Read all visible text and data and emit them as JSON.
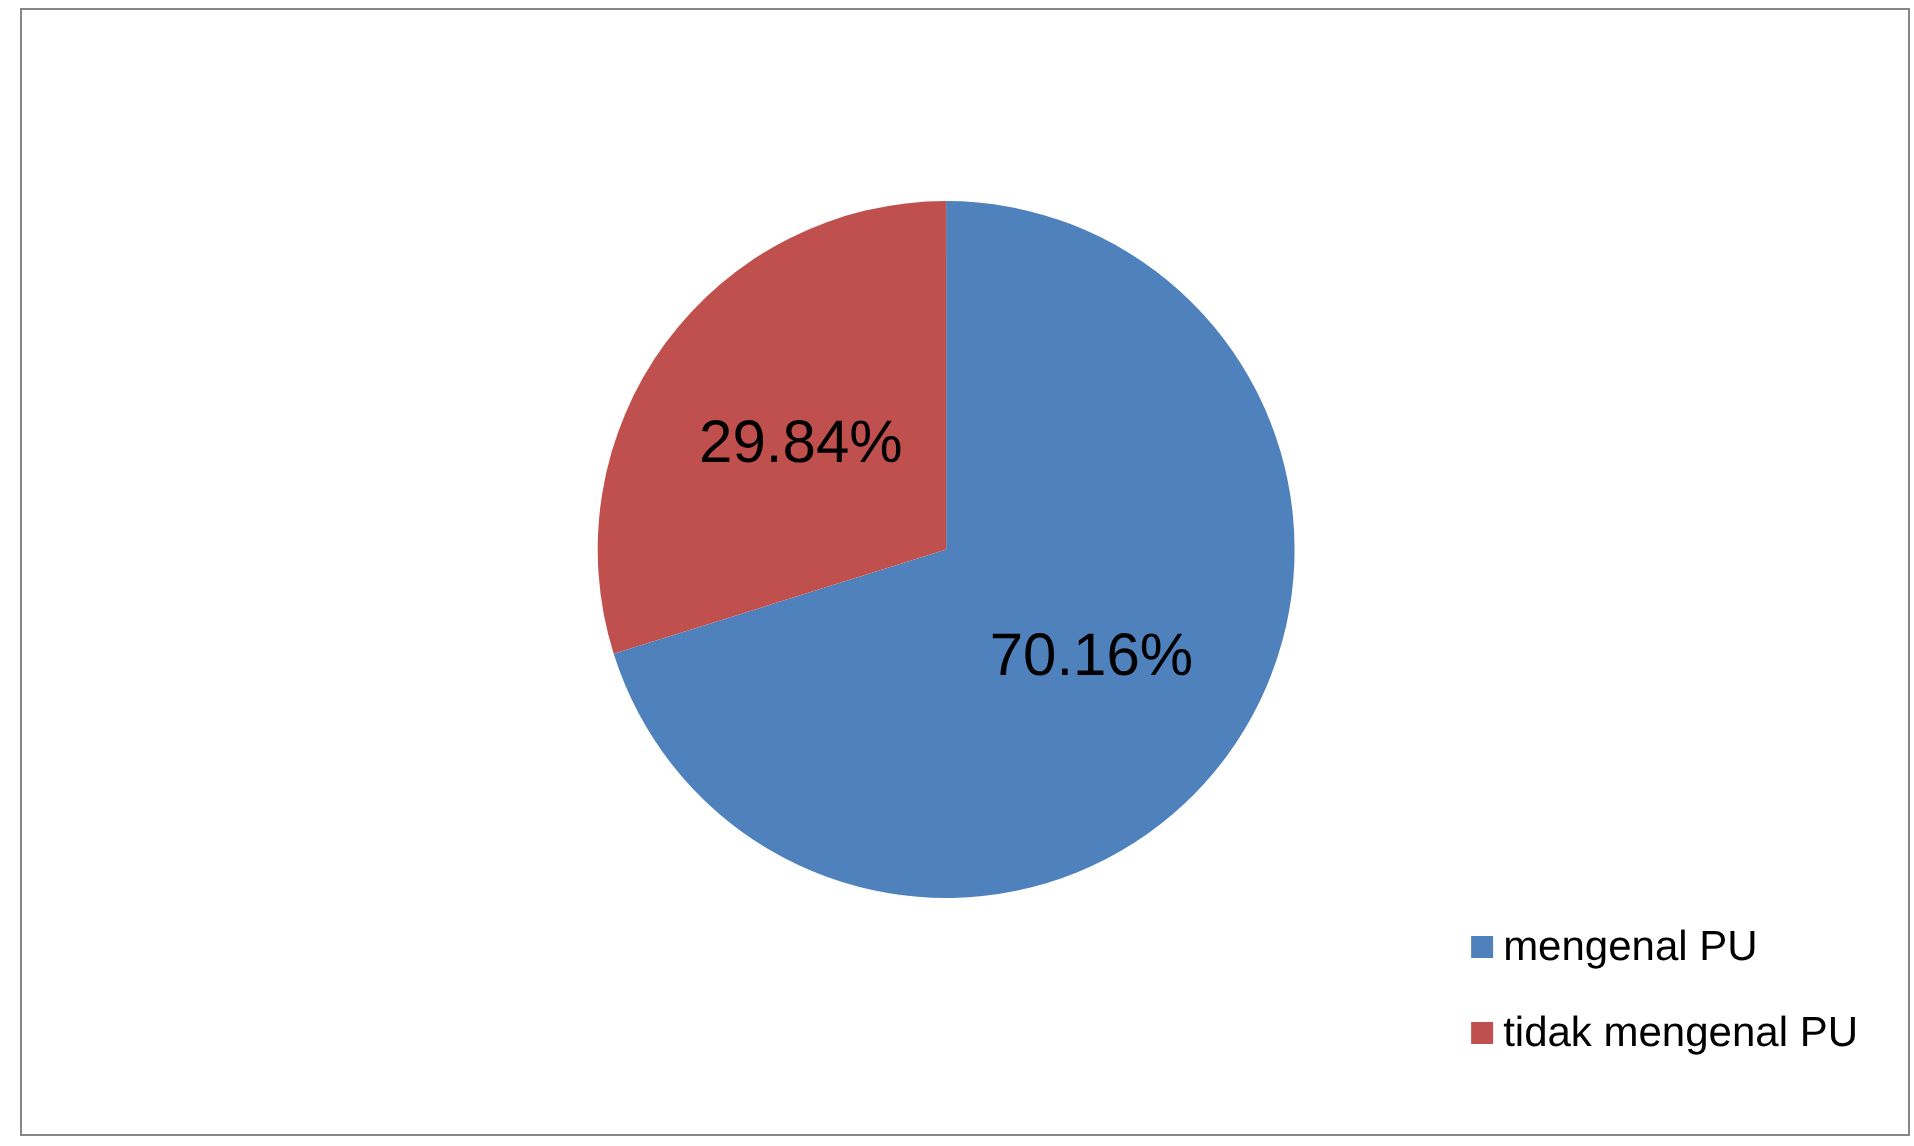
{
  "chart_data": {
    "type": "pie",
    "categories": [
      "mengenal PU",
      "tidak mengenal PU"
    ],
    "values": [
      70.16,
      29.84
    ],
    "colors": [
      "#4f81bd",
      "#c0504d"
    ],
    "value_labels": [
      "70.16%",
      "29.84%"
    ],
    "legend": "bottom right"
  }
}
